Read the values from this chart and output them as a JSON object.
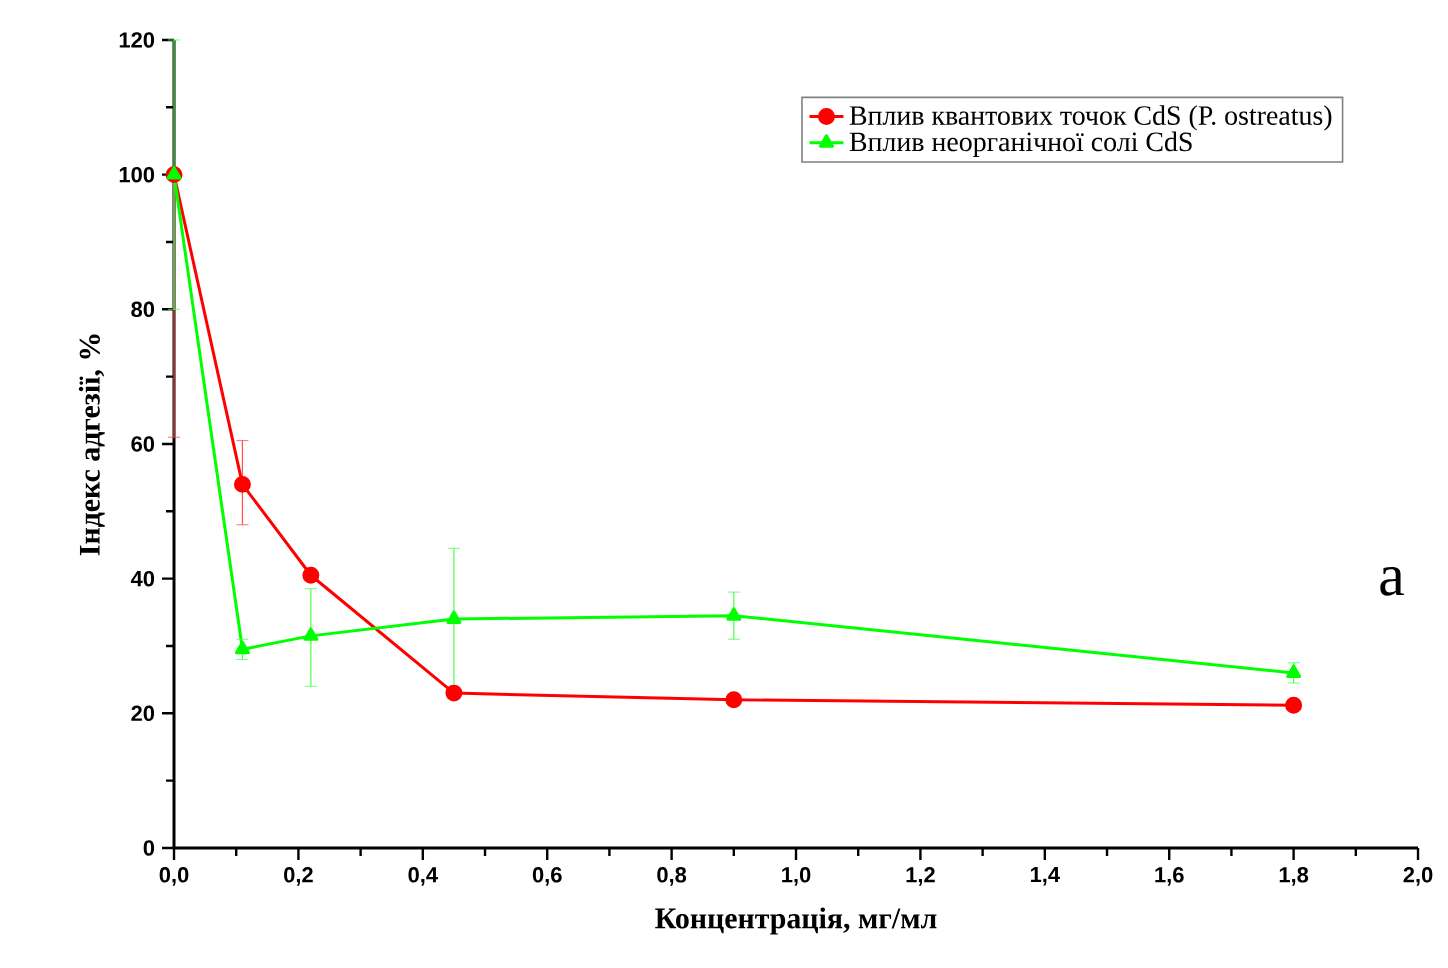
{
  "chart_data": {
    "type": "line",
    "xlabel": "Концентрація, мг/мл",
    "ylabel": "Індекс адгезії, %",
    "x": [
      0,
      0.11,
      0.22,
      0.45,
      0.9,
      1.8
    ],
    "series": [
      {
        "name": "Вплив квантових точок CdS (P. ostreatus)",
        "color": "#ff0000",
        "marker": "circle",
        "values": [
          100,
          54,
          40.5,
          23,
          22,
          21.2
        ],
        "errors": [
          [
            61,
            100
          ],
          [
            48,
            60.5
          ],
          null,
          null,
          null,
          null
        ]
      },
      {
        "name": "Вплив неорганічної солі CdS",
        "color": "#00ff00",
        "marker": "triangle",
        "values": [
          100,
          29.5,
          31.5,
          34,
          34.5,
          26
        ],
        "errors": [
          [
            80,
            120
          ],
          [
            28,
            31
          ],
          [
            24,
            38.5
          ],
          [
            23,
            44.5
          ],
          [
            31,
            38
          ],
          [
            24.5,
            27.5
          ]
        ]
      }
    ],
    "xlim": [
      0,
      2
    ],
    "ylim": [
      0,
      120
    ],
    "xticks": [
      {
        "value": 0,
        "label": "0,0"
      },
      {
        "value": 0.2,
        "label": "0,2"
      },
      {
        "value": 0.4,
        "label": "0,4"
      },
      {
        "value": 0.6,
        "label": "0,6"
      },
      {
        "value": 0.8,
        "label": "0,8"
      },
      {
        "value": 1,
        "label": "1,0"
      },
      {
        "value": 1.2,
        "label": "1,2"
      },
      {
        "value": 1.4,
        "label": "1,4"
      },
      {
        "value": 1.6,
        "label": "1,6"
      },
      {
        "value": 1.8,
        "label": "1,8"
      },
      {
        "value": 2,
        "label": "2,0"
      }
    ],
    "yticks": [
      0,
      20,
      40,
      60,
      80,
      100,
      120
    ],
    "legend": "top right",
    "grid": false,
    "line_style": "solid",
    "annotations": [
      "а"
    ]
  }
}
